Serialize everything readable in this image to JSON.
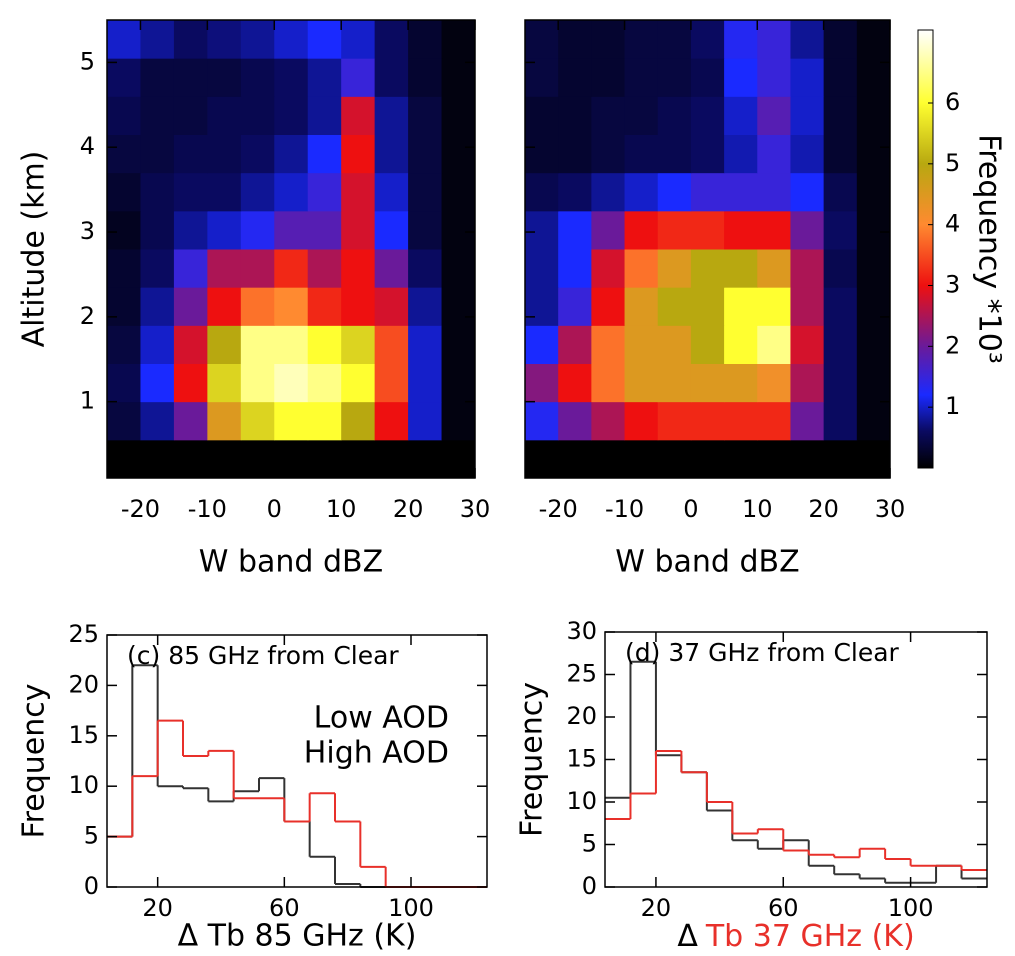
{
  "chart_data": [
    {
      "type": "heatmap",
      "x_bins": [
        -25,
        -20,
        -15,
        -10,
        -5,
        0,
        5,
        10,
        15,
        20,
        25,
        30
      ],
      "y_bins": [
        0.1,
        0.55,
        1,
        1.45,
        1.9,
        2.35,
        2.8,
        3.25,
        3.7,
        4.15,
        4.6,
        5.05,
        5.5
      ],
      "z": [
        [
          0,
          0,
          0,
          0,
          0,
          0,
          0,
          0,
          0,
          0,
          0
        ],
        [
          0.4,
          0.8,
          2,
          4.5,
          5.5,
          6,
          6,
          5,
          3,
          1,
          0.1
        ],
        [
          0.5,
          1.2,
          3,
          5.5,
          6.5,
          6.8,
          6.5,
          6,
          3.5,
          1,
          0.1
        ],
        [
          0.4,
          1,
          2.8,
          5,
          6.5,
          6.5,
          6,
          5.5,
          3.5,
          1,
          0.1
        ],
        [
          0.3,
          0.8,
          2,
          3,
          3.8,
          4,
          3.2,
          3,
          2.8,
          0.8,
          0.1
        ],
        [
          0.3,
          0.6,
          1.5,
          2.5,
          2.5,
          3.2,
          2.5,
          3,
          2,
          0.6,
          0.1
        ],
        [
          0.2,
          0.5,
          0.8,
          1,
          1.3,
          1.8,
          1.8,
          2.8,
          1.2,
          0.4,
          0.1
        ],
        [
          0.3,
          0.5,
          0.6,
          0.6,
          0.8,
          1,
          1.5,
          2.8,
          1,
          0.4,
          0.1
        ],
        [
          0.4,
          0.4,
          0.5,
          0.5,
          0.6,
          0.8,
          1.2,
          3,
          0.8,
          0.4,
          0.1
        ],
        [
          0.5,
          0.4,
          0.4,
          0.5,
          0.5,
          0.6,
          0.8,
          2.8,
          0.8,
          0.4,
          0.1
        ],
        [
          0.6,
          0.4,
          0.4,
          0.4,
          0.5,
          0.6,
          0.8,
          1.5,
          0.6,
          0.3,
          0.1
        ],
        [
          1,
          0.8,
          0.6,
          0.7,
          0.8,
          1,
          1.2,
          1,
          0.6,
          0.3,
          0.1
        ]
      ],
      "xlim": [
        -25,
        30
      ],
      "ylim": [
        0.1,
        5.5
      ],
      "xticks": [
        -20,
        -10,
        0,
        10,
        20,
        30
      ],
      "yticks": [
        1,
        2,
        3,
        4,
        5
      ],
      "x_label": "W band dBZ",
      "y_label": "Altitude (km)"
    },
    {
      "type": "heatmap",
      "x_bins": [
        -25,
        -20,
        -15,
        -10,
        -5,
        0,
        5,
        10,
        15,
        20,
        25,
        30
      ],
      "y_bins": [
        0.1,
        0.55,
        1,
        1.45,
        1.9,
        2.35,
        2.8,
        3.25,
        3.7,
        4.15,
        4.6,
        5.05,
        5.5
      ],
      "z": [
        [
          0,
          0,
          0,
          0,
          0,
          0,
          0,
          0,
          0,
          0,
          0
        ],
        [
          1.3,
          2,
          2.5,
          3,
          3.2,
          3.2,
          3.2,
          3.2,
          2,
          0.6,
          0.1
        ],
        [
          2.2,
          3,
          3.8,
          4.5,
          4.5,
          4.5,
          4.5,
          4.2,
          2.5,
          0.6,
          0.1
        ],
        [
          1.2,
          2.5,
          3.8,
          4.5,
          4.5,
          5,
          6,
          6.5,
          2.8,
          0.6,
          0.1
        ],
        [
          0.8,
          1.5,
          3,
          4.5,
          5,
          5,
          6,
          6,
          2.5,
          0.6,
          0.1
        ],
        [
          0.8,
          1.2,
          2.8,
          3.8,
          4.5,
          5,
          5,
          4.5,
          2.5,
          0.5,
          0.1
        ],
        [
          0.8,
          1.2,
          2,
          3,
          3.2,
          3.2,
          3,
          3,
          2,
          0.6,
          0.1
        ],
        [
          0.5,
          0.6,
          0.8,
          1,
          1.2,
          1.5,
          1.5,
          1.5,
          1.2,
          0.5,
          0.1
        ],
        [
          0.3,
          0.3,
          0.4,
          0.5,
          0.5,
          0.6,
          0.9,
          1.5,
          0.9,
          0.3,
          0.1
        ],
        [
          0.3,
          0.3,
          0.4,
          0.4,
          0.5,
          0.6,
          1,
          1.8,
          1,
          0.3,
          0.1
        ],
        [
          0.4,
          0.3,
          0.3,
          0.4,
          0.4,
          0.5,
          1.2,
          1.5,
          1,
          0.3,
          0.1
        ],
        [
          0.4,
          0.3,
          0.3,
          0.4,
          0.4,
          0.6,
          1.3,
          1.5,
          0.8,
          0.3,
          0.1
        ]
      ],
      "xlim": [
        -25,
        30
      ],
      "ylim": [
        0.1,
        5.5
      ],
      "xticks": [
        -20,
        -10,
        0,
        10,
        20,
        30
      ],
      "yticks": [
        1,
        2,
        3,
        4,
        5
      ],
      "ytick_labels": false,
      "x_label": "W band dBZ",
      "colorbar": {
        "clim": [
          0,
          7.2
        ],
        "ticks": [
          1,
          2,
          3,
          4,
          5,
          6
        ],
        "label": "Frequency *10³"
      },
      "colormap": [
        {
          "value": 0,
          "color": "#000000"
        },
        {
          "value": 0.6,
          "color": "#0a0a60"
        },
        {
          "value": 1.2,
          "color": "#1a2aff"
        },
        {
          "value": 2,
          "color": "#6a1a9a"
        },
        {
          "value": 3,
          "color": "#ee1010"
        },
        {
          "value": 4,
          "color": "#ff8a30"
        },
        {
          "value": 5,
          "color": "#b8a810"
        },
        {
          "value": 6,
          "color": "#ffff30"
        },
        {
          "value": 7.2,
          "color": "#ffffff"
        }
      ]
    },
    {
      "type": "histogram",
      "bins": [
        4,
        12,
        20,
        28,
        36,
        44,
        52,
        60,
        68,
        76,
        84,
        92,
        100,
        108,
        116,
        124
      ],
      "series": [
        {
          "color": "#333333",
          "values": [
            5,
            22,
            10,
            9.8,
            8.5,
            9.5,
            10.8,
            6.5,
            3,
            0.3,
            0,
            0,
            0,
            0,
            0
          ]
        },
        {
          "color": "#e8302a",
          "values": [
            5,
            11,
            16.5,
            13,
            13.5,
            8.8,
            8.8,
            6.5,
            9.3,
            6.5,
            2,
            0,
            0,
            0,
            0
          ]
        }
      ],
      "xlim": [
        4,
        124
      ],
      "ylim": [
        0,
        25
      ],
      "xticks": [
        20,
        60,
        100
      ],
      "yticks": [
        0,
        5,
        10,
        15,
        20,
        25
      ],
      "annotation": "(c) 85 GHz from Clear",
      "legend": {
        "entries": [
          "Low AOD",
          "High AOD"
        ],
        "color": "#e8302a"
      },
      "x_label": "Δ Tb 85 GHz (K)",
      "y_label": "Frequency"
    },
    {
      "type": "histogram",
      "bins": [
        4,
        12,
        20,
        28,
        36,
        44,
        52,
        60,
        68,
        76,
        84,
        92,
        100,
        108,
        116,
        124
      ],
      "series": [
        {
          "color": "#333333",
          "values": [
            10.5,
            26.5,
            15.5,
            13.5,
            9,
            5.5,
            4.5,
            5.5,
            2.5,
            1.5,
            1,
            0.5,
            0.5,
            2.5,
            1
          ]
        },
        {
          "color": "#e8302a",
          "values": [
            8,
            11,
            16,
            13.5,
            10,
            6.3,
            6.8,
            4.3,
            3.8,
            3.5,
            4.5,
            3.3,
            2.5,
            2.5,
            2
          ]
        }
      ],
      "xlim": [
        4,
        124
      ],
      "ylim": [
        0,
        30
      ],
      "xticks": [
        20,
        60,
        100
      ],
      "yticks": [
        0,
        5,
        10,
        15,
        20,
        25,
        30
      ],
      "annotation": "(d) 37 GHz from Clear",
      "x_label": [
        "Δ",
        "Tb 37 GHz (K)"
      ],
      "x_label_colors": [
        "#000000",
        "#e8302a"
      ],
      "y_label": "Frequency"
    }
  ]
}
